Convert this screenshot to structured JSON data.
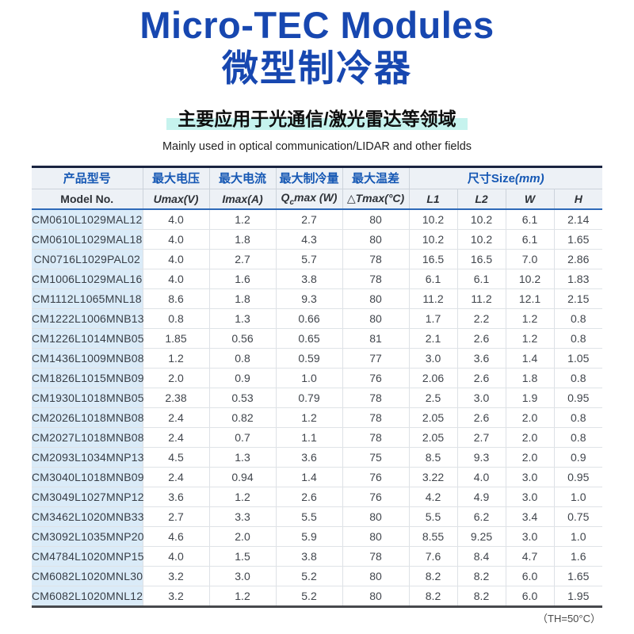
{
  "page": {
    "title_en": "Micro-TEC Modules",
    "title_cn": "微型制冷器",
    "subtitle_cn": "主要应用于光通信/激光雷达等领域",
    "subtitle_en": "Mainly used in optical communication/LIDAR and other fields",
    "footnote": "（TH=50°C）",
    "colors": {
      "title_blue": "#1747b0",
      "header_text_blue": "#1658b4",
      "highlight_cyan": "#c6f3ee",
      "header_row_bg": "#edf1f6",
      "model_column_bg": "#daebf8",
      "top_border_navy": "#1a2440",
      "header_underline_blue": "#2e6ab9"
    }
  },
  "table": {
    "head": {
      "cn": {
        "model": "产品型号",
        "umax": "最大电压",
        "imax": "最大电流",
        "qcmax": "最大制冷量",
        "tmax": "最大温差",
        "size": "尺寸Size",
        "size_unit": "(mm)"
      },
      "en": {
        "model": "Model No.",
        "umax": "Umax(V)",
        "imax": "Imax(A)",
        "qc_pre": "Q",
        "qc_sub": "c",
        "qc_post": "max (W)",
        "tmax": "△Tmax(°C)",
        "l1": "L1",
        "l2": "L2",
        "w": "W",
        "h": "H"
      }
    },
    "rows": [
      [
        "CM0610L1029MAL12",
        "4.0",
        "1.2",
        "2.7",
        "80",
        "10.2",
        "10.2",
        "6.1",
        "2.14"
      ],
      [
        "CM0610L1029MAL18",
        "4.0",
        "1.8",
        "4.3",
        "80",
        "10.2",
        "10.2",
        "6.1",
        "1.65"
      ],
      [
        "CN0716L1029PAL02",
        "4.0",
        "2.7",
        "5.7",
        "78",
        "16.5",
        "16.5",
        "7.0",
        "2.86"
      ],
      [
        "CM1006L1029MAL16",
        "4.0",
        "1.6",
        "3.8",
        "78",
        "6.1",
        "6.1",
        "10.2",
        "1.83"
      ],
      [
        "CM1112L1065MNL18",
        "8.6",
        "1.8",
        "9.3",
        "80",
        "11.2",
        "11.2",
        "12.1",
        "2.15"
      ],
      [
        "CM1222L1006MNB13",
        "0.8",
        "1.3",
        "0.66",
        "80",
        "1.7",
        "2.2",
        "1.2",
        "0.8"
      ],
      [
        "CM1226L1014MNB05",
        "1.85",
        "0.56",
        "0.65",
        "81",
        "2.1",
        "2.6",
        "1.2",
        "0.8"
      ],
      [
        "CM1436L1009MNB08",
        "1.2",
        "0.8",
        "0.59",
        "77",
        "3.0",
        "3.6",
        "1.4",
        "1.05"
      ],
      [
        "CM1826L1015MNB09",
        "2.0",
        "0.9",
        "1.0",
        "76",
        "2.06",
        "2.6",
        "1.8",
        "0.8"
      ],
      [
        "CM1930L1018MNB05",
        "2.38",
        "0.53",
        "0.79",
        "78",
        "2.5",
        "3.0",
        "1.9",
        "0.95"
      ],
      [
        "CM2026L1018MNB08",
        "2.4",
        "0.82",
        "1.2",
        "78",
        "2.05",
        "2.6",
        "2.0",
        "0.8"
      ],
      [
        "CM2027L1018MNB08",
        "2.4",
        "0.7",
        "1.1",
        "78",
        "2.05",
        "2.7",
        "2.0",
        "0.8"
      ],
      [
        "CM2093L1034MNP13",
        "4.5",
        "1.3",
        "3.6",
        "75",
        "8.5",
        "9.3",
        "2.0",
        "0.9"
      ],
      [
        "CM3040L1018MNB09",
        "2.4",
        "0.94",
        "1.4",
        "76",
        "3.22",
        "4.0",
        "3.0",
        "0.95"
      ],
      [
        "CM3049L1027MNP12",
        "3.6",
        "1.2",
        "2.6",
        "76",
        "4.2",
        "4.9",
        "3.0",
        "1.0"
      ],
      [
        "CM3462L1020MNB33",
        "2.7",
        "3.3",
        "5.5",
        "80",
        "5.5",
        "6.2",
        "3.4",
        "0.75"
      ],
      [
        "CM3092L1035MNP20",
        "4.6",
        "2.0",
        "5.9",
        "80",
        "8.55",
        "9.25",
        "3.0",
        "1.0"
      ],
      [
        "CM4784L1020MNP15",
        "4.0",
        "1.5",
        "3.8",
        "78",
        "7.6",
        "8.4",
        "4.7",
        "1.6"
      ],
      [
        "CM6082L1020MNL30",
        "3.2",
        "3.0",
        "5.2",
        "80",
        "8.2",
        "8.2",
        "6.0",
        "1.65"
      ],
      [
        "CM6082L1020MNL12",
        "3.2",
        "1.2",
        "5.2",
        "80",
        "8.2",
        "8.2",
        "6.0",
        "1.95"
      ]
    ]
  }
}
